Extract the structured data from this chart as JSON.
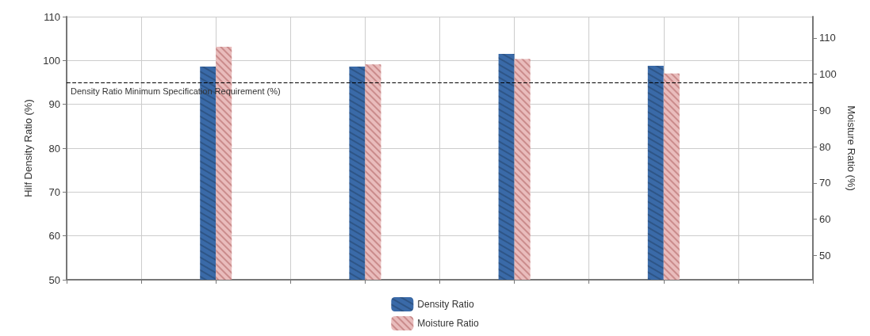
{
  "chart_data": {
    "type": "bar",
    "ylabel": "Hilf Density Ratio (%)",
    "y2label": "Moisture Ratio (%)",
    "categories": [
      null,
      null,
      null,
      null,
      null,
      null,
      null,
      null,
      null,
      null,
      null
    ],
    "series": [
      {
        "name": "Density Ratio",
        "color": "#3a6aa8",
        "values": [
          null,
          null,
          98.6,
          null,
          98.6,
          null,
          101.5,
          null,
          98.8,
          null,
          null
        ]
      },
      {
        "name": "Moisture Ratio",
        "color": "#e9bcbc",
        "axis": "y2",
        "values": [
          null,
          null,
          107.6,
          null,
          102.7,
          null,
          104.2,
          null,
          100.2,
          null,
          null
        ]
      }
    ],
    "ylim": [
      50,
      110
    ],
    "yticks": [
      50,
      60,
      70,
      80,
      90,
      100,
      110
    ],
    "y2lim": [
      43.3,
      115.9
    ],
    "y2ticks": [
      50,
      60,
      70,
      80,
      90,
      100,
      110
    ],
    "ref_lines": [
      {
        "axis": "y",
        "value": 95,
        "label": "Density Ratio Minimum Specification Requirement (%)",
        "color": "#000000",
        "line_style": "dashed"
      }
    ],
    "grid": true,
    "legend": "bottom",
    "tick_labels": "y"
  }
}
